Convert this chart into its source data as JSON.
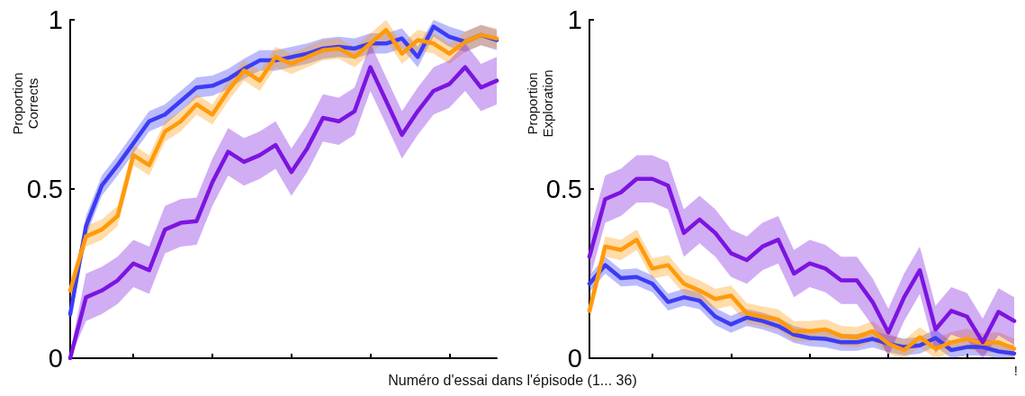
{
  "chart_data": [
    {
      "type": "line",
      "ylabel": "Proportion\nCorrects",
      "xlabel": "Numéro d'essai dans l'épisode (1... 36)",
      "categories": [
        null,
        null,
        null,
        null,
        null,
        null,
        null,
        null,
        null,
        null,
        null,
        null,
        null,
        null,
        null,
        null,
        null,
        null,
        null,
        null,
        null,
        null,
        null,
        null,
        null,
        null,
        null,
        null
      ],
      "ylim": [
        0,
        1
      ],
      "yticks": [
        0,
        0.5,
        1
      ],
      "series": [
        {
          "color": "#3c3cf5",
          "values": [
            0.13,
            0.39,
            0.51,
            0.57,
            0.635,
            0.7,
            0.72,
            0.76,
            0.8,
            0.805,
            0.825,
            0.855,
            0.88,
            0.88,
            0.89,
            0.9,
            0.915,
            0.92,
            0.915,
            0.93,
            0.93,
            0.945,
            0.89,
            0.98,
            0.95,
            0.935,
            0.955,
            0.94
          ],
          "lower": [
            0.1,
            0.36,
            0.48,
            0.54,
            0.605,
            0.67,
            0.69,
            0.73,
            0.77,
            0.775,
            0.795,
            0.825,
            0.85,
            0.85,
            0.86,
            0.87,
            0.885,
            0.89,
            0.885,
            0.9,
            0.9,
            0.915,
            0.86,
            0.95,
            0.92,
            0.905,
            0.925,
            0.91
          ],
          "upper": [
            0.16,
            0.42,
            0.54,
            0.6,
            0.665,
            0.73,
            0.75,
            0.79,
            0.83,
            0.835,
            0.855,
            0.885,
            0.91,
            0.91,
            0.92,
            0.93,
            0.945,
            0.95,
            0.945,
            0.96,
            0.96,
            0.975,
            0.92,
            1.0,
            0.98,
            0.965,
            0.985,
            0.97
          ]
        },
        {
          "color": "#ff9a0a",
          "values": [
            0.2,
            0.36,
            0.38,
            0.42,
            0.6,
            0.57,
            0.67,
            0.7,
            0.75,
            0.72,
            0.79,
            0.85,
            0.82,
            0.89,
            0.87,
            0.89,
            0.91,
            0.915,
            0.89,
            0.93,
            0.97,
            0.9,
            0.94,
            0.93,
            0.9,
            0.935,
            0.955,
            0.945
          ],
          "lower": [
            0.17,
            0.33,
            0.35,
            0.39,
            0.57,
            0.54,
            0.64,
            0.67,
            0.72,
            0.69,
            0.76,
            0.82,
            0.79,
            0.86,
            0.84,
            0.86,
            0.88,
            0.885,
            0.86,
            0.9,
            0.94,
            0.87,
            0.91,
            0.9,
            0.87,
            0.905,
            0.925,
            0.915
          ],
          "upper": [
            0.23,
            0.39,
            0.41,
            0.45,
            0.63,
            0.6,
            0.7,
            0.73,
            0.78,
            0.75,
            0.82,
            0.88,
            0.85,
            0.92,
            0.9,
            0.92,
            0.94,
            0.945,
            0.92,
            0.96,
            1.0,
            0.93,
            0.97,
            0.96,
            0.93,
            0.965,
            0.985,
            0.975
          ]
        },
        {
          "color": "#7c14e0",
          "values": [
            0,
            0.18,
            0.2,
            0.23,
            0.28,
            0.26,
            0.38,
            0.4,
            0.405,
            0.52,
            0.61,
            0.58,
            0.6,
            0.63,
            0.55,
            0.62,
            0.71,
            0.7,
            0.73,
            0.86,
            0.76,
            0.66,
            0.73,
            0.79,
            0.81,
            0.86,
            0.8,
            0.82
          ],
          "lower": [
            0,
            0.11,
            0.13,
            0.16,
            0.21,
            0.19,
            0.31,
            0.33,
            0.335,
            0.45,
            0.54,
            0.51,
            0.53,
            0.56,
            0.48,
            0.55,
            0.64,
            0.63,
            0.66,
            0.79,
            0.69,
            0.59,
            0.66,
            0.72,
            0.74,
            0.79,
            0.73,
            0.75
          ],
          "upper": [
            0.02,
            0.25,
            0.27,
            0.3,
            0.35,
            0.33,
            0.45,
            0.47,
            0.475,
            0.59,
            0.68,
            0.65,
            0.67,
            0.7,
            0.62,
            0.69,
            0.78,
            0.77,
            0.8,
            0.93,
            0.83,
            0.73,
            0.8,
            0.86,
            0.88,
            0.93,
            0.87,
            0.89
          ]
        }
      ]
    },
    {
      "type": "line",
      "ylabel": "Proportion\nExploration",
      "annotations": [
        "!"
      ],
      "categories": [
        null,
        null,
        null,
        null,
        null,
        null,
        null,
        null,
        null,
        null,
        null,
        null,
        null,
        null,
        null,
        null,
        null,
        null,
        null,
        null,
        null,
        null,
        null,
        null,
        null,
        null,
        null,
        null
      ],
      "ylim": [
        0,
        1
      ],
      "yticks": [
        0,
        0.5,
        1
      ],
      "series": [
        {
          "color": "#3c3cf5",
          "values": [
            0.22,
            0.275,
            0.237,
            0.24,
            0.22,
            0.166,
            0.18,
            0.17,
            0.123,
            0.1,
            0.12,
            0.11,
            0.095,
            0.07,
            0.06,
            0.057,
            0.047,
            0.047,
            0.057,
            0.043,
            0.033,
            0.038,
            0.06,
            0.024,
            0.033,
            0.033,
            0.02,
            0.014
          ],
          "lower": [
            0.195,
            0.25,
            0.212,
            0.215,
            0.195,
            0.141,
            0.155,
            0.145,
            0.098,
            0.075,
            0.095,
            0.085,
            0.07,
            0.045,
            0.035,
            0.032,
            0.022,
            0.022,
            0.032,
            0.018,
            0.008,
            0.013,
            0.035,
            0,
            0.008,
            0.008,
            0,
            0
          ],
          "upper": [
            0.245,
            0.3,
            0.262,
            0.265,
            0.245,
            0.191,
            0.205,
            0.195,
            0.148,
            0.125,
            0.145,
            0.135,
            0.12,
            0.095,
            0.085,
            0.082,
            0.072,
            0.072,
            0.082,
            0.068,
            0.058,
            0.063,
            0.085,
            0.049,
            0.058,
            0.058,
            0.045,
            0.039
          ]
        },
        {
          "color": "#ff9a0a",
          "values": [
            0.14,
            0.33,
            0.32,
            0.35,
            0.265,
            0.275,
            0.22,
            0.2,
            0.175,
            0.185,
            0.133,
            0.123,
            0.114,
            0.08,
            0.08,
            0.085,
            0.066,
            0.062,
            0.08,
            0.043,
            0.024,
            0.062,
            0.028,
            0.047,
            0.057,
            0.043,
            0.047,
            0.028
          ],
          "lower": [
            0.11,
            0.3,
            0.29,
            0.32,
            0.235,
            0.245,
            0.19,
            0.17,
            0.145,
            0.155,
            0.103,
            0.093,
            0.084,
            0.05,
            0.05,
            0.055,
            0.036,
            0.032,
            0.05,
            0.013,
            0,
            0.032,
            0,
            0.017,
            0.027,
            0.013,
            0.017,
            0
          ],
          "upper": [
            0.17,
            0.36,
            0.35,
            0.38,
            0.295,
            0.305,
            0.25,
            0.23,
            0.205,
            0.215,
            0.163,
            0.153,
            0.144,
            0.11,
            0.11,
            0.115,
            0.096,
            0.092,
            0.11,
            0.073,
            0.054,
            0.092,
            0.058,
            0.077,
            0.087,
            0.073,
            0.077,
            0.058
          ]
        },
        {
          "color": "#7c14e0",
          "values": [
            0.3,
            0.47,
            0.49,
            0.53,
            0.53,
            0.51,
            0.37,
            0.41,
            0.37,
            0.31,
            0.29,
            0.33,
            0.35,
            0.25,
            0.28,
            0.265,
            0.23,
            0.23,
            0.166,
            0.076,
            0.18,
            0.26,
            0.085,
            0.14,
            0.123,
            0.047,
            0.137,
            0.11
          ],
          "lower": [
            0.23,
            0.4,
            0.42,
            0.46,
            0.46,
            0.44,
            0.3,
            0.34,
            0.3,
            0.24,
            0.22,
            0.26,
            0.28,
            0.18,
            0.21,
            0.195,
            0.16,
            0.16,
            0.096,
            0.006,
            0.11,
            0.19,
            0.015,
            0.07,
            0.053,
            0,
            0.067,
            0.04
          ],
          "upper": [
            0.37,
            0.54,
            0.56,
            0.6,
            0.6,
            0.58,
            0.44,
            0.48,
            0.44,
            0.38,
            0.36,
            0.4,
            0.42,
            0.32,
            0.35,
            0.335,
            0.3,
            0.3,
            0.236,
            0.146,
            0.25,
            0.33,
            0.155,
            0.21,
            0.193,
            0.117,
            0.207,
            0.18
          ]
        }
      ]
    }
  ]
}
